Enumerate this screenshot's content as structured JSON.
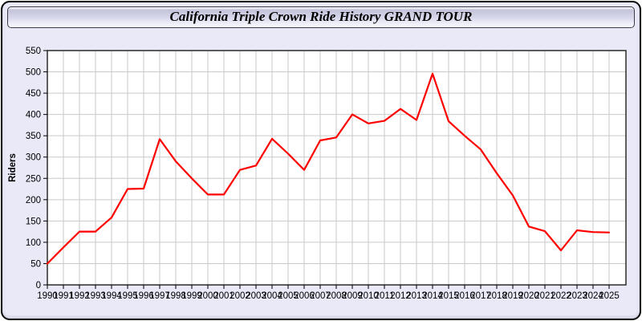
{
  "window": {
    "title": "California Triple Crown Ride History GRAND TOUR"
  },
  "colors": {
    "line": "#ff0000",
    "window_background": "#e9e9f7",
    "plot_background": "#ffffff",
    "gridline": "#c9c9c9",
    "axis_frame": "#2a2a2a",
    "tick_text": "#000000"
  },
  "chart_data": {
    "type": "line",
    "title": "California Triple Crown Ride History GRAND TOUR",
    "xlabel": "",
    "ylabel": "Riders",
    "ylim": [
      0,
      550
    ],
    "ytick_step": 50,
    "grid": true,
    "legend": "none",
    "categories": [
      1990,
      1991,
      1992,
      1993,
      1994,
      1995,
      1996,
      1997,
      1998,
      1999,
      2000,
      2001,
      2002,
      2003,
      2004,
      2005,
      2006,
      2007,
      2008,
      2009,
      2010,
      2011,
      2012,
      2013,
      2014,
      2015,
      2016,
      2017,
      2018,
      2019,
      2020,
      2021,
      2022,
      2023,
      2024,
      2025
    ],
    "series": [
      {
        "name": "Riders",
        "values": [
          50,
          88,
          125,
          125,
          158,
          225,
          226,
          342,
          290,
          250,
          212,
          212,
          270,
          280,
          343,
          308,
          270,
          339,
          346,
          400,
          379,
          385,
          413,
          387,
          496,
          384,
          350,
          318,
          262,
          210,
          137,
          126,
          81,
          128,
          124,
          123
        ]
      }
    ]
  }
}
